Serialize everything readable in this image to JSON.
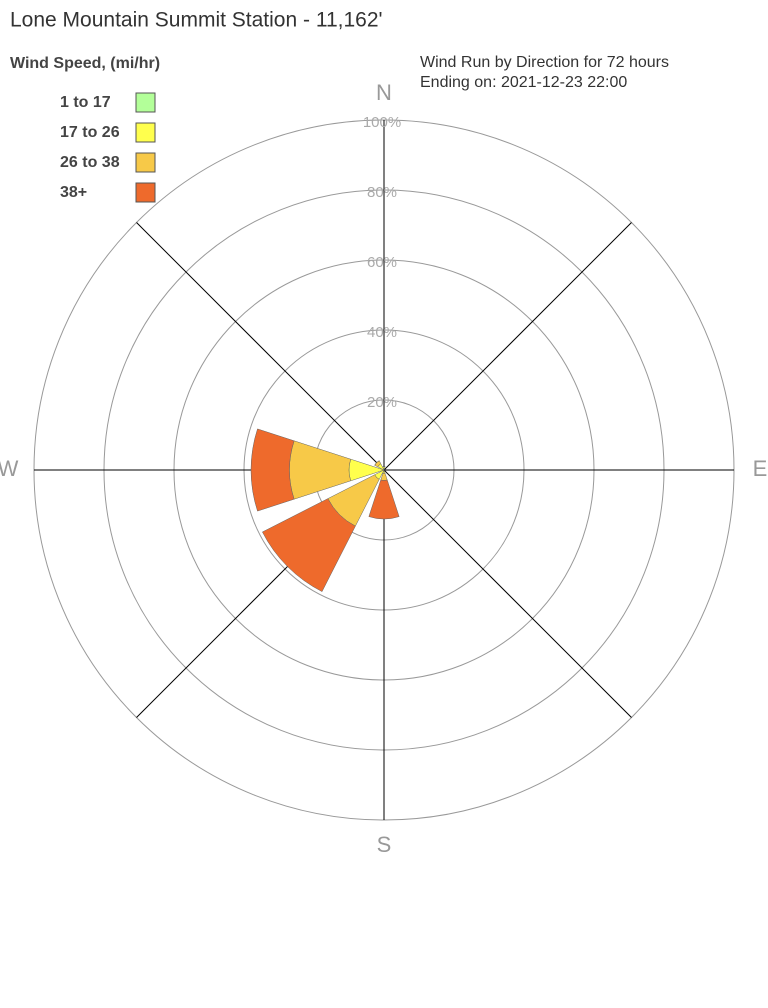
{
  "chart_data": {
    "type": "windrose",
    "title": "Lone Mountain Summit Station - 11,162'",
    "legend_title": "Wind Speed, (mi/hr)",
    "subtitle": [
      "Wind Run by Direction for 72 hours",
      "Ending on: 2021-12-23 22:00"
    ],
    "categories": [
      "N",
      null,
      "E",
      null,
      "S",
      null,
      "W",
      null
    ],
    "series": [
      {
        "name": "1 to 17",
        "color": "#b3ff99",
        "values": [
          0,
          0,
          0,
          0,
          0,
          0,
          0,
          0
        ]
      },
      {
        "name": "17 to 26",
        "color": "#ffff4d",
        "values": [
          1,
          0,
          0,
          0,
          1,
          3,
          10,
          2
        ]
      },
      {
        "name": "26 to 38",
        "color": "#f7c948",
        "values": [
          0,
          0,
          0,
          0,
          2,
          15,
          17,
          1
        ]
      },
      {
        "name": "38+",
        "color": "#ee6a2c",
        "values": [
          0,
          0,
          0,
          0,
          11,
          21,
          11,
          0
        ]
      }
    ],
    "rlim": [
      0,
      100
    ],
    "rticks": [
      {
        "value": 20,
        "label": "20%"
      },
      {
        "value": 40,
        "label": "40%"
      },
      {
        "value": 60,
        "label": "60%"
      },
      {
        "value": 80,
        "label": "80%"
      },
      {
        "value": 100,
        "label": "100%"
      }
    ]
  }
}
